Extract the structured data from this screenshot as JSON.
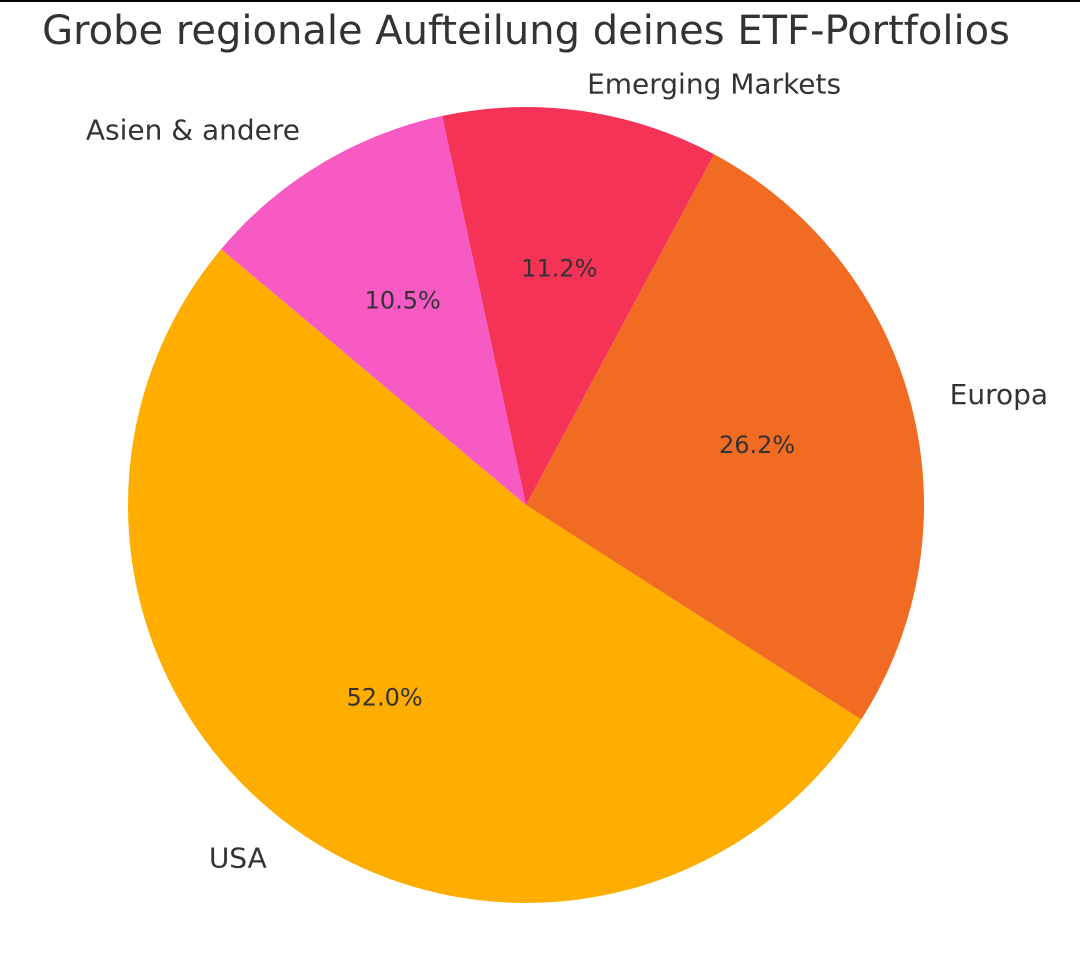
{
  "chart_data": {
    "type": "pie",
    "title": "Grobe regionale Aufteilung deines ETF-Portfolios",
    "start_angle_deg": 140,
    "direction": "counterclockwise",
    "slices": [
      {
        "label": "USA",
        "value": 52.0,
        "pct_label": "52.0%",
        "color": "#FFAE00"
      },
      {
        "label": "Europa",
        "value": 26.2,
        "pct_label": "26.2%",
        "color": "#F26B22"
      },
      {
        "label": "Emerging Markets",
        "value": 11.2,
        "pct_label": "11.2%",
        "color": "#F53357"
      },
      {
        "label": "Asien & andere",
        "value": 10.5,
        "pct_label": "10.5%",
        "color": "#F75AC3"
      }
    ]
  }
}
